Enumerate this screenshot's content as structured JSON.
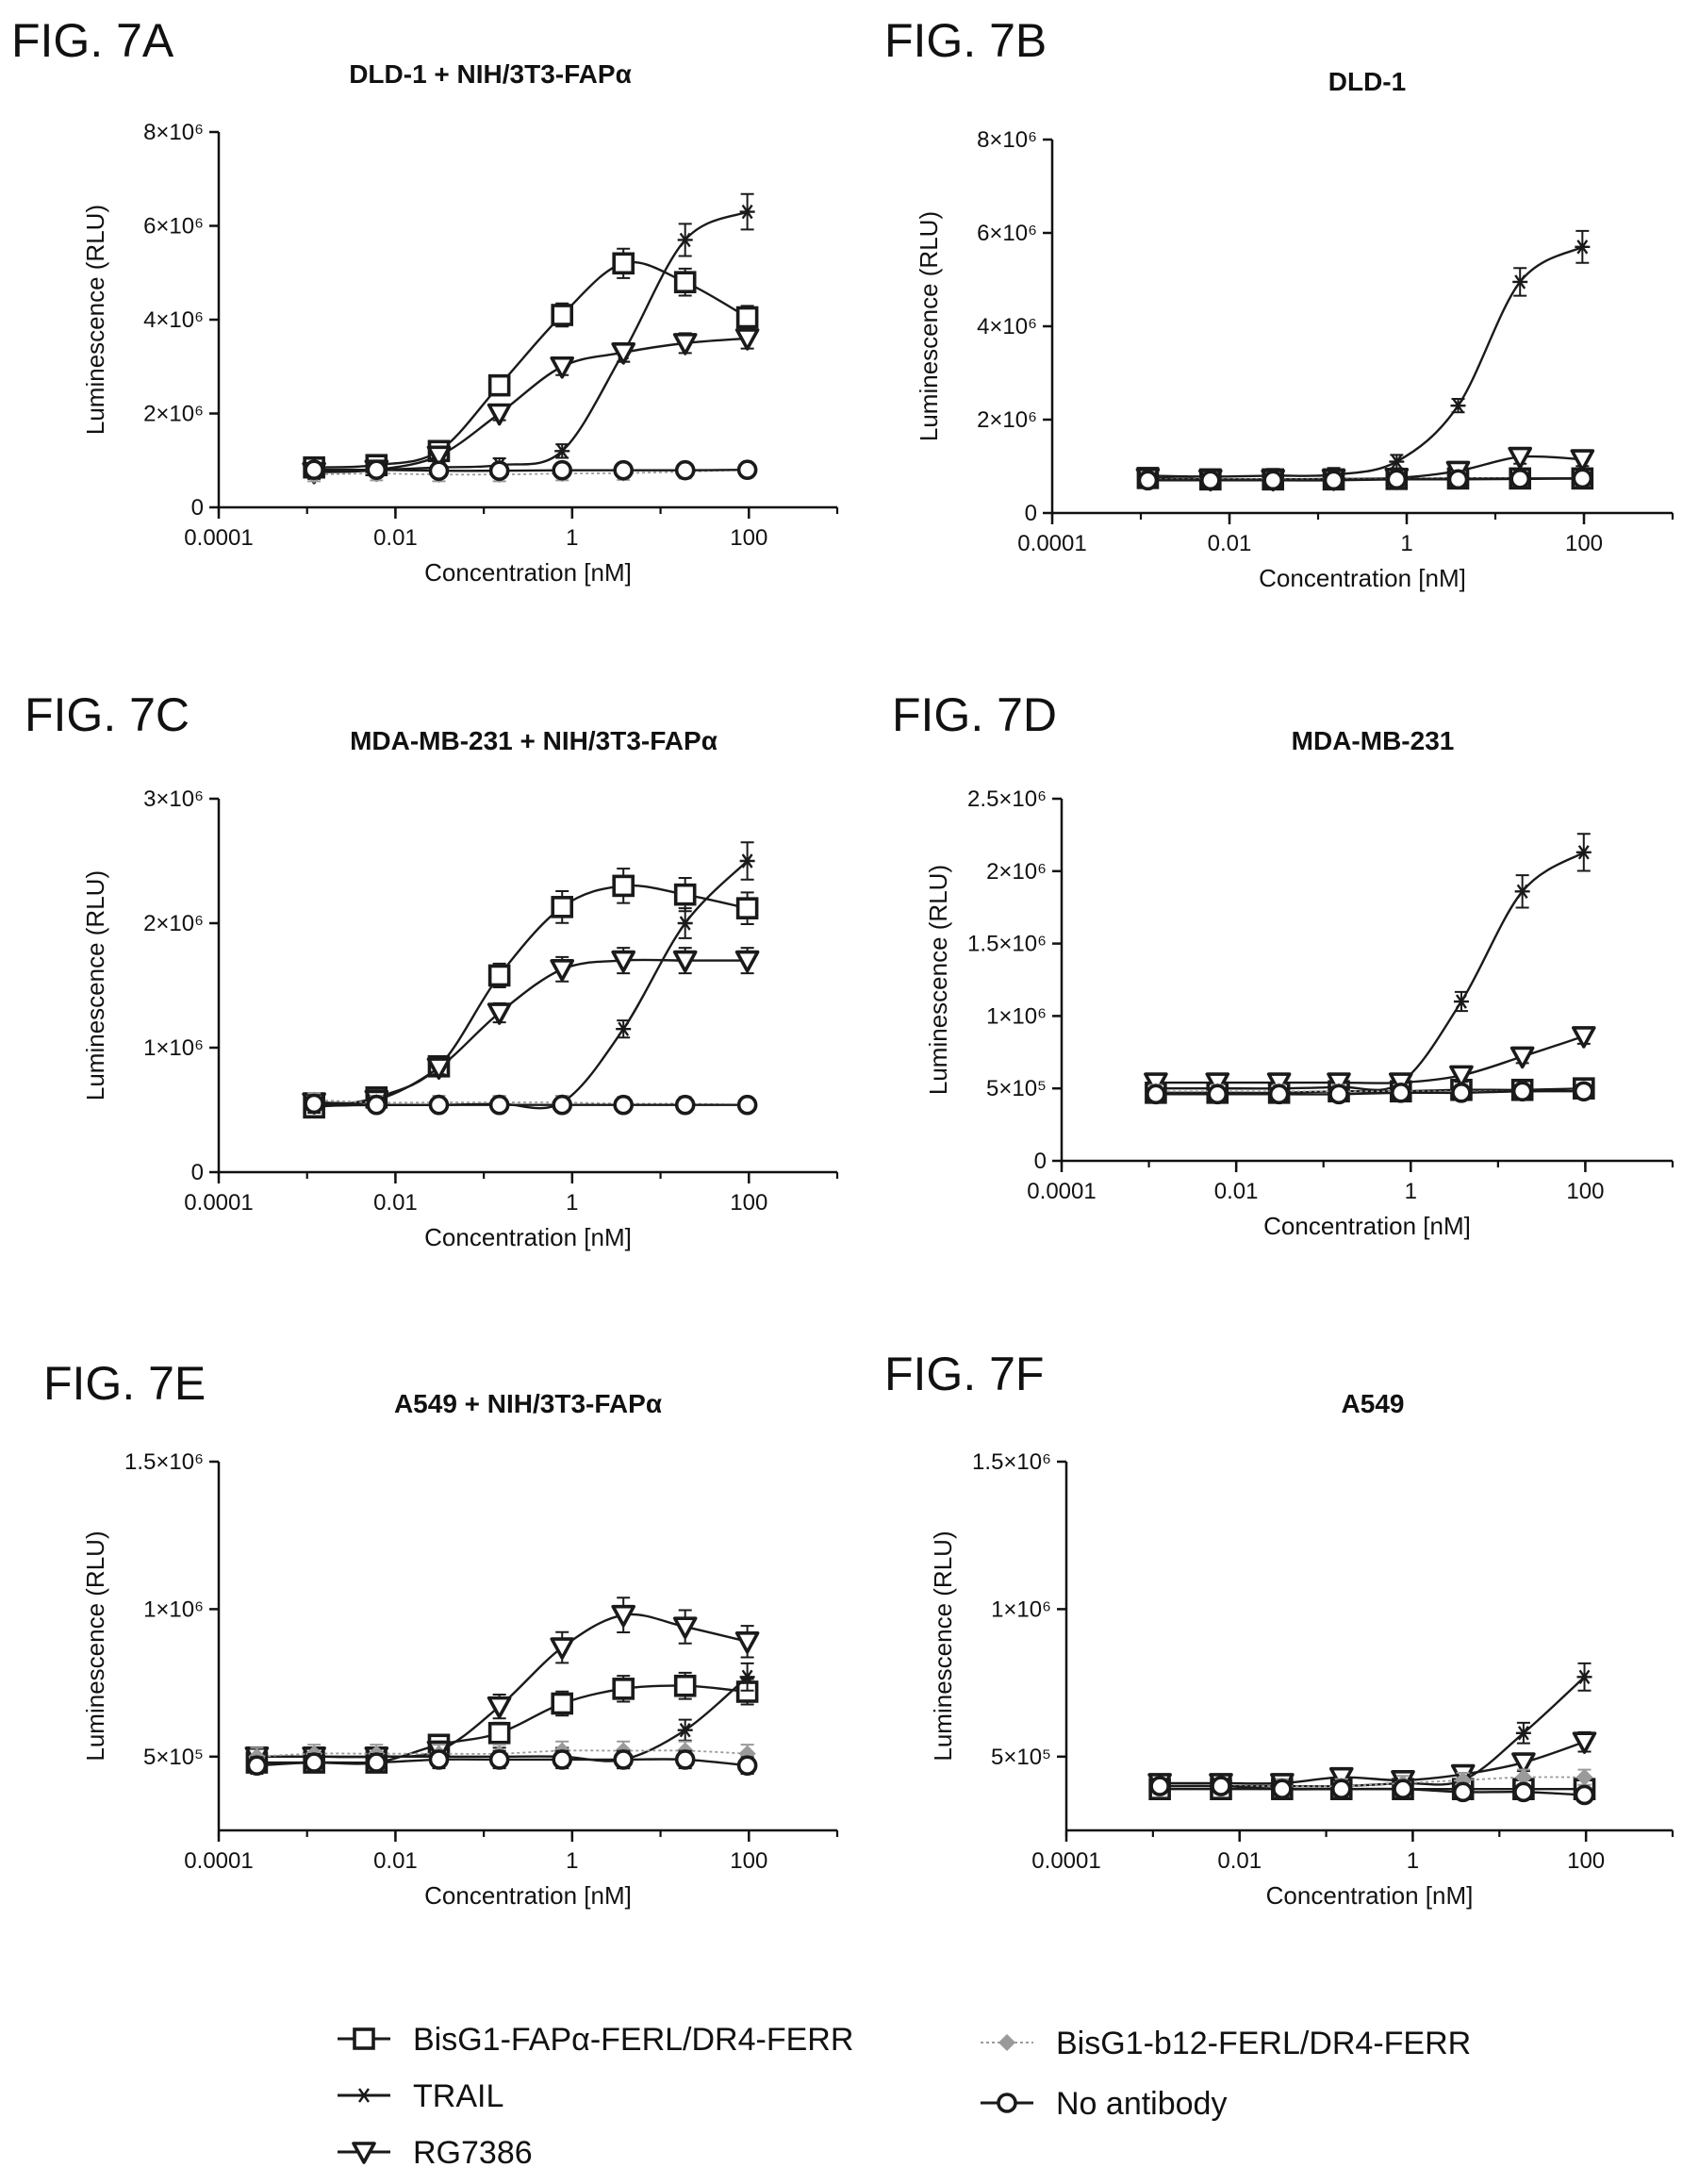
{
  "chart_data": [
    {
      "type": "line",
      "figure_label": "FIG. 7A",
      "title": "DLD-1 + NIH/3T3-FAPα",
      "xlabel": "Concentration [nM]",
      "ylabel": "Luminescence (RLU)",
      "xscale": "log",
      "xlim": [
        0.0001,
        1000
      ],
      "ylim": [
        0,
        8000000
      ],
      "yticks": [
        0,
        2000000,
        4000000,
        6000000,
        8000000
      ],
      "ytick_labels": [
        "0",
        "2×10⁶",
        "4×10⁶",
        "6×10⁶",
        "8×10⁶"
      ],
      "xticks": [
        0.0001,
        0.01,
        1,
        100
      ],
      "xtick_labels": [
        "0.0001",
        "0.01",
        "1",
        "100"
      ],
      "x": [
        0.0012,
        0.0061,
        0.031,
        0.15,
        0.77,
        3.8,
        19,
        96
      ],
      "series": [
        {
          "name": "BisG1-FAPα-FERL/DR4-FERR",
          "marker": "square",
          "values": [
            850000,
            900000,
            1200000,
            2600000,
            4100000,
            5200000,
            4800000,
            4050000
          ]
        },
        {
          "name": "TRAIL",
          "marker": "star",
          "values": [
            800000,
            800000,
            850000,
            900000,
            1200000,
            3300000,
            5700000,
            6300000
          ]
        },
        {
          "name": "RG7386",
          "marker": "triangle",
          "values": [
            750000,
            800000,
            1100000,
            2000000,
            3000000,
            3300000,
            3500000,
            3600000
          ]
        },
        {
          "name": "BisG1-b12-FERL/DR4-FERR",
          "marker": "diamond",
          "values": [
            700000,
            720000,
            700000,
            700000,
            720000,
            730000,
            760000,
            800000
          ]
        },
        {
          "name": "No antibody",
          "marker": "circle",
          "values": [
            800000,
            800000,
            780000,
            780000,
            790000,
            790000,
            790000,
            800000
          ]
        }
      ]
    },
    {
      "type": "line",
      "figure_label": "FIG. 7B",
      "title": "DLD-1",
      "xlabel": "Concentration [nM]",
      "ylabel": "Luminescence (RLU)",
      "xscale": "log",
      "xlim": [
        0.0001,
        1000
      ],
      "ylim": [
        0,
        8000000
      ],
      "yticks": [
        0,
        2000000,
        4000000,
        6000000,
        8000000
      ],
      "ytick_labels": [
        "0",
        "2×10⁶",
        "4×10⁶",
        "6×10⁶",
        "8×10⁶"
      ],
      "xticks": [
        0.0001,
        0.01,
        1,
        100
      ],
      "xtick_labels": [
        "0.0001",
        "0.01",
        "1",
        "100"
      ],
      "x": [
        0.0012,
        0.0061,
        0.031,
        0.15,
        0.77,
        3.8,
        19,
        96
      ],
      "series": [
        {
          "name": "BisG1-FAPα-FERL/DR4-FERR",
          "marker": "square",
          "values": [
            750000,
            720000,
            720000,
            720000,
            730000,
            740000,
            740000,
            740000
          ]
        },
        {
          "name": "TRAIL",
          "marker": "star",
          "values": [
            800000,
            780000,
            800000,
            820000,
            1100000,
            2300000,
            4950000,
            5700000
          ]
        },
        {
          "name": "RG7386",
          "marker": "triangle",
          "values": [
            750000,
            720000,
            720000,
            730000,
            750000,
            900000,
            1200000,
            1150000
          ]
        },
        {
          "name": "BisG1-b12-FERL/DR4-FERR",
          "marker": "diamond",
          "values": [
            720000,
            720000,
            720000,
            720000,
            730000,
            740000,
            740000,
            740000
          ]
        },
        {
          "name": "No antibody",
          "marker": "circle",
          "values": [
            700000,
            700000,
            700000,
            700000,
            720000,
            720000,
            730000,
            740000
          ]
        }
      ]
    },
    {
      "type": "line",
      "figure_label": "FIG. 7C",
      "title": "MDA-MB-231 + NIH/3T3-FAPα",
      "xlabel": "Concentration [nM]",
      "ylabel": "Luminescence (RLU)",
      "xscale": "log",
      "xlim": [
        0.0001,
        1000
      ],
      "ylim": [
        0,
        3000000
      ],
      "yticks": [
        0,
        1000000,
        2000000,
        3000000
      ],
      "ytick_labels": [
        "0",
        "1×10⁶",
        "2×10⁶",
        "3×10⁶"
      ],
      "xticks": [
        0.0001,
        0.01,
        1,
        100
      ],
      "xtick_labels": [
        "0.0001",
        "0.01",
        "1",
        "100"
      ],
      "x": [
        0.0012,
        0.0061,
        0.031,
        0.15,
        0.77,
        3.8,
        19,
        96
      ],
      "series": [
        {
          "name": "BisG1-FAPα-FERL/DR4-FERR",
          "marker": "square",
          "values": [
            520000,
            600000,
            850000,
            1580000,
            2130000,
            2300000,
            2230000,
            2120000
          ]
        },
        {
          "name": "TRAIL",
          "marker": "star",
          "values": [
            530000,
            540000,
            540000,
            550000,
            560000,
            1150000,
            2000000,
            2500000
          ]
        },
        {
          "name": "RG7386",
          "marker": "triangle",
          "values": [
            560000,
            580000,
            840000,
            1280000,
            1630000,
            1700000,
            1700000,
            1700000
          ]
        },
        {
          "name": "BisG1-b12-FERL/DR4-FERR",
          "marker": "diamond",
          "values": [
            580000,
            560000,
            560000,
            560000,
            560000,
            550000,
            550000,
            540000
          ]
        },
        {
          "name": "No antibody",
          "marker": "circle",
          "values": [
            550000,
            540000,
            540000,
            540000,
            540000,
            540000,
            540000,
            540000
          ]
        }
      ]
    },
    {
      "type": "line",
      "figure_label": "FIG. 7D",
      "title": "MDA-MB-231",
      "xlabel": "Concentration [nM]",
      "ylabel": "Luminescence (RLU)",
      "xscale": "log",
      "xlim": [
        0.0001,
        1000
      ],
      "ylim": [
        0,
        2500000
      ],
      "yticks": [
        0,
        500000,
        1000000,
        1500000,
        2000000,
        2500000
      ],
      "ytick_labels": [
        "0",
        "5×10⁵",
        "1×10⁶",
        "1.5×10⁶",
        "2×10⁶",
        "2.5×10⁶"
      ],
      "xticks": [
        0.0001,
        0.01,
        1,
        100
      ],
      "xtick_labels": [
        "0.0001",
        "0.01",
        "1",
        "100"
      ],
      "x": [
        0.0012,
        0.0061,
        0.031,
        0.15,
        0.77,
        3.8,
        19,
        96
      ],
      "series": [
        {
          "name": "BisG1-FAPα-FERL/DR4-FERR",
          "marker": "square",
          "values": [
            470000,
            470000,
            470000,
            480000,
            480000,
            490000,
            490000,
            500000
          ]
        },
        {
          "name": "TRAIL",
          "marker": "star",
          "values": [
            500000,
            500000,
            500000,
            510000,
            540000,
            1100000,
            1860000,
            2130000
          ]
        },
        {
          "name": "RG7386",
          "marker": "triangle",
          "values": [
            540000,
            540000,
            540000,
            540000,
            540000,
            590000,
            720000,
            860000
          ]
        },
        {
          "name": "BisG1-b12-FERL/DR4-FERR",
          "marker": "diamond",
          "values": [
            480000,
            480000,
            480000,
            480000,
            480000,
            480000,
            480000,
            480000
          ]
        },
        {
          "name": "No antibody",
          "marker": "circle",
          "values": [
            460000,
            460000,
            460000,
            460000,
            470000,
            470000,
            480000,
            480000
          ]
        }
      ]
    },
    {
      "type": "line",
      "figure_label": "FIG. 7E",
      "title": "A549 + NIH/3T3-FAPα",
      "xlabel": "Concentration [nM]",
      "ylabel": "Luminescence (RLU)",
      "xscale": "log",
      "xlim": [
        0.0001,
        1000
      ],
      "ylim": [
        250000,
        1500000
      ],
      "yticks": [
        500000,
        1000000,
        1500000
      ],
      "ytick_labels": [
        "5×10⁵",
        "1×10⁶",
        "1.5×10⁶"
      ],
      "xticks": [
        0.0001,
        0.01,
        1,
        100
      ],
      "xtick_labels": [
        "0.0001",
        "0.01",
        "1",
        "100"
      ],
      "x": [
        0.00027,
        0.0012,
        0.0061,
        0.031,
        0.15,
        0.77,
        3.8,
        19,
        96
      ],
      "series": [
        {
          "name": "BisG1-FAPα-FERL/DR4-FERR",
          "marker": "square",
          "values": [
            480000,
            480000,
            480000,
            540000,
            580000,
            680000,
            730000,
            740000,
            720000
          ]
        },
        {
          "name": "TRAIL",
          "marker": "star",
          "values": [
            500000,
            500000,
            500000,
            500000,
            500000,
            500000,
            490000,
            590000,
            770000
          ]
        },
        {
          "name": "RG7386",
          "marker": "triangle",
          "values": [
            500000,
            500000,
            500000,
            520000,
            670000,
            870000,
            980000,
            940000,
            890000
          ]
        },
        {
          "name": "BisG1-b12-FERL/DR4-FERR",
          "marker": "diamond",
          "values": [
            500000,
            510000,
            510000,
            510000,
            510000,
            520000,
            520000,
            520000,
            510000
          ]
        },
        {
          "name": "No antibody",
          "marker": "circle",
          "values": [
            470000,
            480000,
            480000,
            490000,
            490000,
            490000,
            490000,
            490000,
            470000
          ]
        }
      ]
    },
    {
      "type": "line",
      "figure_label": "FIG. 7F",
      "title": "A549",
      "xlabel": "Concentration [nM]",
      "ylabel": "Luminescence (RLU)",
      "xscale": "log",
      "xlim": [
        0.0001,
        1000
      ],
      "ylim": [
        250000,
        1500000
      ],
      "yticks": [
        500000,
        1000000,
        1500000
      ],
      "ytick_labels": [
        "5×10⁵",
        "1×10⁶",
        "1.5×10⁶"
      ],
      "xticks": [
        0.0001,
        0.01,
        1,
        100
      ],
      "xtick_labels": [
        "0.0001",
        "0.01",
        "1",
        "100"
      ],
      "x": [
        0.0012,
        0.0061,
        0.031,
        0.15,
        0.77,
        3.8,
        19,
        96
      ],
      "series": [
        {
          "name": "BisG1-FAPα-FERL/DR4-FERR",
          "marker": "square",
          "values": [
            390000,
            390000,
            390000,
            390000,
            390000,
            390000,
            390000,
            390000
          ]
        },
        {
          "name": "TRAIL",
          "marker": "star",
          "values": [
            400000,
            400000,
            400000,
            400000,
            410000,
            420000,
            580000,
            770000
          ]
        },
        {
          "name": "RG7386",
          "marker": "triangle",
          "values": [
            410000,
            410000,
            410000,
            430000,
            420000,
            440000,
            480000,
            550000
          ]
        },
        {
          "name": "BisG1-b12-FERL/DR4-FERR",
          "marker": "diamond",
          "values": [
            400000,
            400000,
            400000,
            400000,
            410000,
            420000,
            430000,
            430000
          ]
        },
        {
          "name": "No antibody",
          "marker": "circle",
          "values": [
            400000,
            400000,
            390000,
            390000,
            390000,
            380000,
            380000,
            370000
          ]
        }
      ]
    }
  ],
  "legend": {
    "placement": "bottom",
    "entries": [
      {
        "name": "BisG1-FAPα-FERL/DR4-FERR",
        "marker": "square"
      },
      {
        "name": "TRAIL",
        "marker": "star"
      },
      {
        "name": "RG7386",
        "marker": "triangle"
      },
      {
        "name": "BisG1-b12-FERL/DR4-FERR",
        "marker": "diamond"
      },
      {
        "name": "No antibody",
        "marker": "circle"
      }
    ]
  },
  "colors": {
    "main": "#1a1a1a",
    "b12": "#9a9a9a"
  }
}
